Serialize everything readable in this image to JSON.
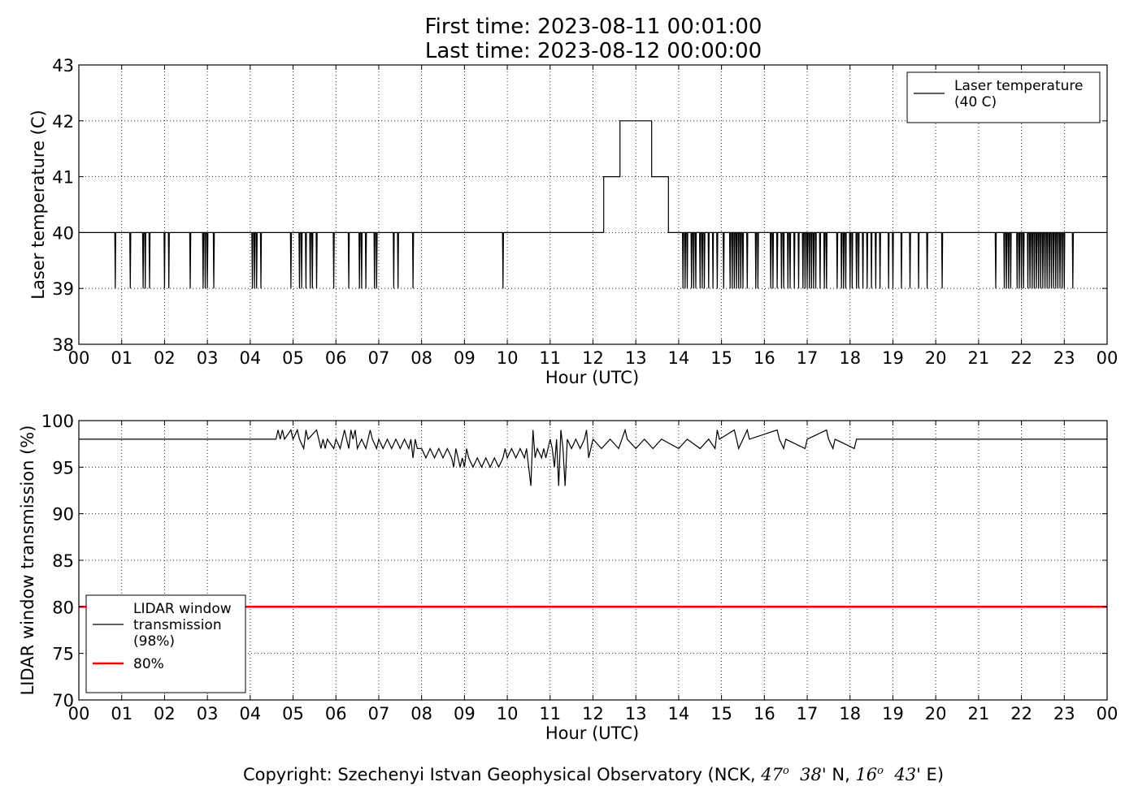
{
  "header": {
    "title_line1": "First time: 2023-08-11 00:01:00",
    "title_line2": "Last time: 2023-08-12 00:00:00"
  },
  "footer": {
    "prefix": "Copyright: Szechenyi Istvan Geophysical Observatory (NCK, ",
    "lat_deg": "47",
    "lat_min": "38'",
    "lat_dir": "N,",
    "lon_deg": "16",
    "lon_min": "43'",
    "lon_dir": "E)",
    "degree_symbol": "o"
  },
  "chart_data": [
    {
      "type": "line",
      "xlabel": "Hour (UTC)",
      "ylabel": "Laser temperature (C)",
      "xlim": [
        0,
        24
      ],
      "ylim": [
        38,
        43
      ],
      "x_ticks": [
        0,
        1,
        2,
        3,
        4,
        5,
        6,
        7,
        8,
        9,
        10,
        11,
        12,
        13,
        14,
        15,
        16,
        17,
        18,
        19,
        20,
        21,
        22,
        23,
        24
      ],
      "x_tick_labels": [
        "00",
        "01",
        "02",
        "03",
        "04",
        "05",
        "06",
        "07",
        "08",
        "09",
        "10",
        "11",
        "12",
        "13",
        "14",
        "15",
        "16",
        "17",
        "18",
        "19",
        "20",
        "21",
        "22",
        "23",
        "00"
      ],
      "y_ticks": [
        38,
        39,
        40,
        41,
        42,
        43
      ],
      "grid": true,
      "legend": {
        "position": "top-right",
        "entries": [
          {
            "label_lines": [
              "Laser temperature",
              "(40 C)"
            ],
            "color": "#000000"
          }
        ]
      },
      "series": [
        {
          "name": "Laser temperature (40 C)",
          "color": "#000000",
          "baseline": 40,
          "dips_to_39": [
            0.85,
            1.2,
            1.5,
            1.55,
            1.65,
            2.0,
            2.1,
            2.6,
            2.9,
            2.95,
            3.0,
            3.15,
            4.05,
            4.1,
            4.15,
            4.25,
            4.95,
            5.15,
            5.2,
            5.3,
            5.4,
            5.45,
            5.55,
            5.95,
            6.3,
            6.55,
            6.6,
            6.7,
            6.9,
            6.95,
            7.35,
            7.45,
            7.8,
            9.9,
            14.1,
            14.15,
            14.2,
            14.3,
            14.35,
            14.4,
            14.5,
            14.55,
            14.6,
            14.7,
            14.8,
            14.9,
            15.05,
            15.2,
            15.25,
            15.3,
            15.35,
            15.4,
            15.45,
            15.5,
            15.6,
            15.8,
            15.85,
            16.15,
            16.2,
            16.3,
            16.4,
            16.45,
            16.55,
            16.6,
            16.7,
            16.8,
            16.9,
            16.95,
            17.0,
            17.05,
            17.1,
            17.15,
            17.2,
            17.3,
            17.4,
            17.45,
            17.7,
            17.8,
            17.85,
            17.9,
            18.0,
            18.05,
            18.15,
            18.2,
            18.3,
            18.4,
            18.5,
            18.6,
            18.7,
            18.9,
            19.0,
            19.2,
            19.4,
            19.6,
            19.8,
            20.15,
            21.4,
            21.6,
            21.65,
            21.7,
            21.75,
            21.9,
            21.95,
            22.0,
            22.05,
            22.15,
            22.2,
            22.25,
            22.3,
            22.35,
            22.4,
            22.45,
            22.5,
            22.55,
            22.6,
            22.65,
            22.7,
            22.75,
            22.8,
            22.85,
            22.9,
            22.95,
            23.0,
            23.2
          ],
          "plateaus": [
            {
              "x_start": 12.25,
              "x_end": 12.63,
              "y": 41
            },
            {
              "x_start": 12.63,
              "x_end": 13.37,
              "y": 42
            },
            {
              "x_start": 13.37,
              "x_end": 13.76,
              "y": 41
            }
          ]
        }
      ]
    },
    {
      "type": "line",
      "xlabel": "Hour (UTC)",
      "ylabel": "LIDAR window transmission (%)",
      "xlim": [
        0,
        24
      ],
      "ylim": [
        70,
        100
      ],
      "x_ticks": [
        0,
        1,
        2,
        3,
        4,
        5,
        6,
        7,
        8,
        9,
        10,
        11,
        12,
        13,
        14,
        15,
        16,
        17,
        18,
        19,
        20,
        21,
        22,
        23,
        24
      ],
      "x_tick_labels": [
        "00",
        "01",
        "02",
        "03",
        "04",
        "05",
        "06",
        "07",
        "08",
        "09",
        "10",
        "11",
        "12",
        "13",
        "14",
        "15",
        "16",
        "17",
        "18",
        "19",
        "20",
        "21",
        "22",
        "23",
        "00"
      ],
      "y_ticks": [
        70,
        75,
        80,
        85,
        90,
        95,
        100
      ],
      "grid": true,
      "legend": {
        "position": "bottom-left",
        "entries": [
          {
            "label_lines": [
              "LIDAR window",
              "transmission",
              "(98%)"
            ],
            "color": "#000000"
          },
          {
            "label_lines": [
              "80%"
            ],
            "color": "#ff0000"
          }
        ]
      },
      "series": [
        {
          "name": "LIDAR window transmission (98%)",
          "color": "#000000",
          "baseline": 98,
          "points": [
            [
              0,
              98
            ],
            [
              4.6,
              98
            ],
            [
              4.65,
              99
            ],
            [
              4.7,
              98
            ],
            [
              4.75,
              99
            ],
            [
              4.8,
              98
            ],
            [
              4.95,
              99
            ],
            [
              5.0,
              98
            ],
            [
              5.1,
              99
            ],
            [
              5.15,
              98
            ],
            [
              5.25,
              97
            ],
            [
              5.3,
              99
            ],
            [
              5.35,
              98
            ],
            [
              5.55,
              99
            ],
            [
              5.6,
              98
            ],
            [
              5.65,
              97
            ],
            [
              5.7,
              98
            ],
            [
              5.75,
              97
            ],
            [
              5.8,
              98
            ],
            [
              5.95,
              97
            ],
            [
              6.0,
              98
            ],
            [
              6.1,
              97
            ],
            [
              6.2,
              99
            ],
            [
              6.25,
              98
            ],
            [
              6.3,
              97
            ],
            [
              6.35,
              99
            ],
            [
              6.4,
              98
            ],
            [
              6.45,
              99
            ],
            [
              6.5,
              97
            ],
            [
              6.6,
              98
            ],
            [
              6.7,
              97
            ],
            [
              6.8,
              99
            ],
            [
              6.85,
              98
            ],
            [
              6.95,
              97
            ],
            [
              7.0,
              98
            ],
            [
              7.1,
              97
            ],
            [
              7.2,
              98
            ],
            [
              7.3,
              97
            ],
            [
              7.4,
              98
            ],
            [
              7.5,
              97
            ],
            [
              7.6,
              98
            ],
            [
              7.7,
              97
            ],
            [
              7.75,
              98
            ],
            [
              7.8,
              96
            ],
            [
              7.85,
              98
            ],
            [
              7.9,
              97
            ],
            [
              8.0,
              97
            ],
            [
              8.1,
              96
            ],
            [
              8.2,
              97
            ],
            [
              8.3,
              96
            ],
            [
              8.4,
              97
            ],
            [
              8.5,
              96
            ],
            [
              8.6,
              97
            ],
            [
              8.7,
              96
            ],
            [
              8.75,
              95
            ],
            [
              8.8,
              97
            ],
            [
              8.85,
              96
            ],
            [
              8.9,
              95
            ],
            [
              8.95,
              96
            ],
            [
              9.0,
              95
            ],
            [
              9.05,
              97
            ],
            [
              9.1,
              96
            ],
            [
              9.2,
              95
            ],
            [
              9.3,
              96
            ],
            [
              9.4,
              95
            ],
            [
              9.5,
              96
            ],
            [
              9.6,
              95
            ],
            [
              9.7,
              96
            ],
            [
              9.8,
              95
            ],
            [
              9.9,
              96
            ],
            [
              9.95,
              97
            ],
            [
              10.0,
              96
            ],
            [
              10.1,
              97
            ],
            [
              10.2,
              96
            ],
            [
              10.3,
              97
            ],
            [
              10.4,
              96
            ],
            [
              10.45,
              97
            ],
            [
              10.5,
              95
            ],
            [
              10.55,
              93
            ],
            [
              10.6,
              99
            ],
            [
              10.65,
              96
            ],
            [
              10.7,
              97
            ],
            [
              10.8,
              96
            ],
            [
              10.85,
              97
            ],
            [
              10.9,
              96
            ],
            [
              11.0,
              98
            ],
            [
              11.05,
              97
            ],
            [
              11.1,
              95
            ],
            [
              11.15,
              98
            ],
            [
              11.2,
              93
            ],
            [
              11.25,
              99
            ],
            [
              11.3,
              97
            ],
            [
              11.35,
              93
            ],
            [
              11.4,
              98
            ],
            [
              11.5,
              97
            ],
            [
              11.6,
              98
            ],
            [
              11.7,
              97
            ],
            [
              11.8,
              98
            ],
            [
              11.85,
              99
            ],
            [
              11.9,
              96
            ],
            [
              12.0,
              98
            ],
            [
              12.2,
              97
            ],
            [
              12.4,
              98
            ],
            [
              12.6,
              97
            ],
            [
              12.75,
              99
            ],
            [
              12.8,
              98
            ],
            [
              13.0,
              97
            ],
            [
              13.2,
              98
            ],
            [
              13.4,
              97
            ],
            [
              13.6,
              98
            ],
            [
              14.0,
              97
            ],
            [
              14.2,
              98
            ],
            [
              14.5,
              97
            ],
            [
              14.7,
              98
            ],
            [
              14.85,
              97
            ],
            [
              14.9,
              99
            ],
            [
              14.95,
              98
            ],
            [
              15.3,
              99
            ],
            [
              15.35,
              98
            ],
            [
              15.4,
              97
            ],
            [
              15.6,
              99
            ],
            [
              15.65,
              98
            ],
            [
              16.3,
              99
            ],
            [
              16.35,
              98
            ],
            [
              16.45,
              97
            ],
            [
              16.5,
              98
            ],
            [
              16.95,
              97
            ],
            [
              17.0,
              98
            ],
            [
              17.45,
              99
            ],
            [
              17.5,
              98
            ],
            [
              17.6,
              97
            ],
            [
              17.65,
              98
            ],
            [
              18.1,
              97
            ],
            [
              18.15,
              98
            ],
            [
              24,
              98
            ]
          ]
        },
        {
          "name": "80%",
          "color": "#ff0000",
          "points": [
            [
              0,
              80
            ],
            [
              24,
              80
            ]
          ]
        }
      ]
    }
  ]
}
